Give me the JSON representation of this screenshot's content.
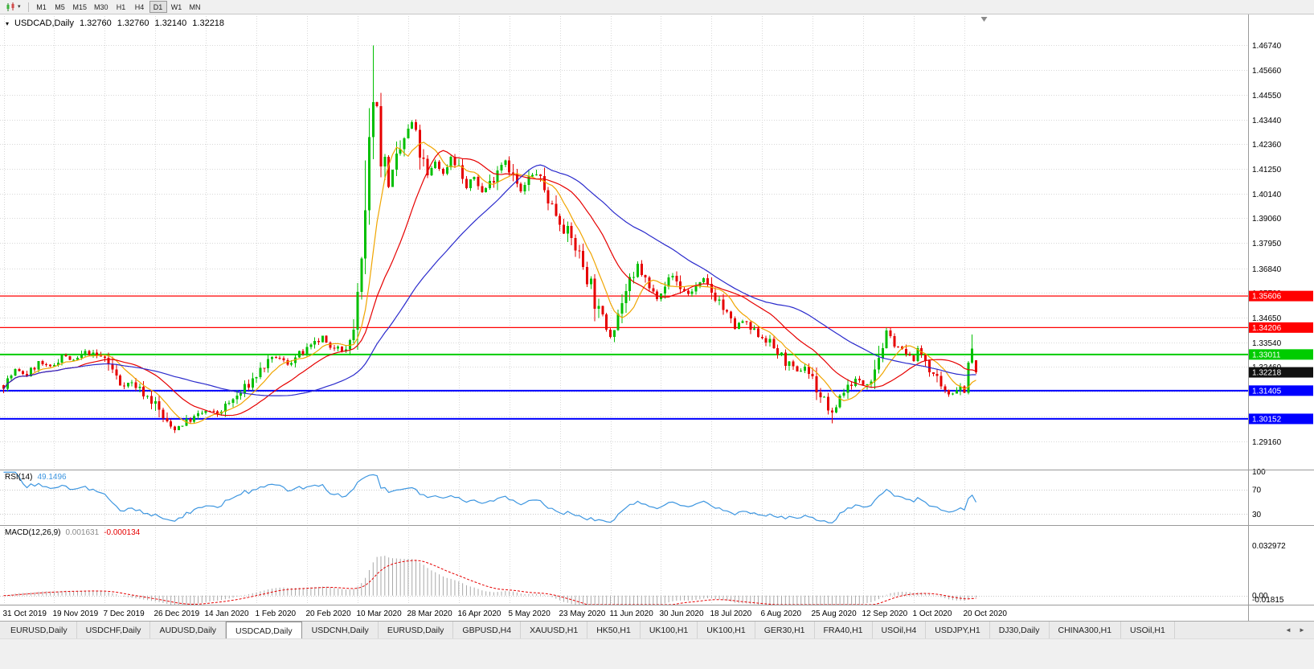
{
  "toolbar": {
    "dropdown_caret": "▾",
    "timeframes": [
      "M1",
      "M5",
      "M15",
      "M30",
      "H1",
      "H4",
      "D1",
      "W1",
      "MN"
    ],
    "active_timeframe": "D1"
  },
  "chart_data": {
    "type": "candlestick",
    "symbol": "USDCAD",
    "timeframe": "Daily",
    "title": {
      "marker": "▾",
      "symbol_label": "USDCAD,Daily",
      "open": "1.32760",
      "high": "1.32760",
      "low": "1.32140",
      "close": "1.32218"
    },
    "price_axis": {
      "labels": [
        "1.46740",
        "1.45660",
        "1.44550",
        "1.43440",
        "1.42360",
        "1.41250",
        "1.40140",
        "1.39060",
        "1.37950",
        "1.36840",
        "1.35760",
        "1.34650",
        "1.33540",
        "1.32460",
        "1.31350",
        "1.30240",
        "1.29160"
      ],
      "range": [
        1.279,
        1.4775
      ]
    },
    "time_axis": {
      "labels": [
        "31 Oct 2019",
        "19 Nov 2019",
        "7 Dec 2019",
        "26 Dec 2019",
        "14 Jan 2020",
        "1 Feb 2020",
        "20 Feb 2020",
        "10 Mar 2020",
        "28 Mar 2020",
        "16 Apr 2020",
        "5 May 2020",
        "23 May 2020",
        "11 Jun 2020",
        "30 Jun 2020",
        "18 Jul 2020",
        "6 Aug 2020",
        "25 Aug 2020",
        "12 Sep 2020",
        "1 Oct 2020",
        "20 Oct 2020"
      ],
      "candles_per_label": 13
    },
    "candle_count": 251,
    "noise_seed": 7,
    "price_waypoints": [
      [
        0,
        1.3165
      ],
      [
        3,
        1.323
      ],
      [
        6,
        1.321
      ],
      [
        9,
        1.3265
      ],
      [
        12,
        1.324
      ],
      [
        15,
        1.33
      ],
      [
        18,
        1.327
      ],
      [
        21,
        1.331
      ],
      [
        24,
        1.3295
      ],
      [
        26,
        1.3285
      ],
      [
        28,
        1.323
      ],
      [
        30,
        1.317
      ],
      [
        33,
        1.3175
      ],
      [
        36,
        1.313
      ],
      [
        39,
        1.308
      ],
      [
        42,
        1.299
      ],
      [
        44,
        1.297
      ],
      [
        46,
        1.2995
      ],
      [
        49,
        1.302
      ],
      [
        52,
        1.305
      ],
      [
        55,
        1.304
      ],
      [
        58,
        1.3085
      ],
      [
        61,
        1.313
      ],
      [
        64,
        1.319
      ],
      [
        67,
        1.325
      ],
      [
        70,
        1.329
      ],
      [
        73,
        1.326
      ],
      [
        76,
        1.33
      ],
      [
        79,
        1.333
      ],
      [
        82,
        1.3375
      ],
      [
        84,
        1.332
      ],
      [
        86,
        1.3345
      ],
      [
        88,
        1.331
      ],
      [
        90,
        1.342
      ],
      [
        92,
        1.362
      ],
      [
        93,
        1.385
      ],
      [
        94,
        1.415
      ],
      [
        95,
        1.449
      ],
      [
        96,
        1.44
      ],
      [
        97,
        1.422
      ],
      [
        99,
        1.406
      ],
      [
        101,
        1.415
      ],
      [
        103,
        1.426
      ],
      [
        105,
        1.433
      ],
      [
        107,
        1.42
      ],
      [
        109,
        1.409
      ],
      [
        111,
        1.416
      ],
      [
        113,
        1.41
      ],
      [
        115,
        1.418
      ],
      [
        117,
        1.413
      ],
      [
        119,
        1.404
      ],
      [
        121,
        1.409
      ],
      [
        123,
        1.402
      ],
      [
        125,
        1.406
      ],
      [
        127,
        1.413
      ],
      [
        129,
        1.417
      ],
      [
        131,
        1.409
      ],
      [
        133,
        1.402
      ],
      [
        135,
        1.408
      ],
      [
        137,
        1.411
      ],
      [
        139,
        1.403
      ],
      [
        141,
        1.396
      ],
      [
        143,
        1.39
      ],
      [
        145,
        1.384
      ],
      [
        147,
        1.378
      ],
      [
        149,
        1.37
      ],
      [
        151,
        1.361
      ],
      [
        153,
        1.348
      ],
      [
        155,
        1.342
      ],
      [
        156,
        1.339
      ],
      [
        158,
        1.349
      ],
      [
        160,
        1.358
      ],
      [
        162,
        1.363
      ],
      [
        163,
        1.37
      ],
      [
        164,
        1.366
      ],
      [
        166,
        1.359
      ],
      [
        168,
        1.356
      ],
      [
        170,
        1.362
      ],
      [
        172,
        1.365
      ],
      [
        174,
        1.36
      ],
      [
        176,
        1.357
      ],
      [
        178,
        1.36
      ],
      [
        180,
        1.363
      ],
      [
        182,
        1.358
      ],
      [
        184,
        1.354
      ],
      [
        186,
        1.347
      ],
      [
        188,
        1.342
      ],
      [
        190,
        1.345
      ],
      [
        192,
        1.341
      ],
      [
        194,
        1.339
      ],
      [
        196,
        1.337
      ],
      [
        198,
        1.333
      ],
      [
        200,
        1.329
      ],
      [
        202,
        1.325
      ],
      [
        204,
        1.322
      ],
      [
        206,
        1.325
      ],
      [
        208,
        1.319
      ],
      [
        210,
        1.312
      ],
      [
        212,
        1.306
      ],
      [
        213,
        1.303
      ],
      [
        215,
        1.312
      ],
      [
        217,
        1.316
      ],
      [
        219,
        1.319
      ],
      [
        221,
        1.317
      ],
      [
        223,
        1.321
      ],
      [
        225,
        1.33
      ],
      [
        227,
        1.339
      ],
      [
        229,
        1.336
      ],
      [
        231,
        1.331
      ],
      [
        233,
        1.329
      ],
      [
        234,
        1.328
      ],
      [
        235,
        1.332
      ],
      [
        237,
        1.328
      ],
      [
        239,
        1.321
      ],
      [
        241,
        1.314
      ],
      [
        243,
        1.3125
      ],
      [
        245,
        1.315
      ],
      [
        247,
        1.3165
      ],
      [
        248,
        1.3255
      ],
      [
        249,
        1.332
      ],
      [
        250,
        1.32218
      ]
    ],
    "candle_overrides": [
      {
        "i": 44,
        "l": 1.2952
      },
      {
        "i": 95,
        "h": 1.4674
      },
      {
        "i": 213,
        "l": 1.2995
      },
      {
        "i": 227,
        "h": 1.342
      },
      {
        "i": 249,
        "h": 1.339
      },
      {
        "i": 250,
        "o": 1.3276,
        "h": 1.3276,
        "l": 1.3214,
        "c": 1.32218
      }
    ],
    "levels": [
      {
        "price": 1.35606,
        "label": "1.35606",
        "color": "#ff0000",
        "thickness": 1.3
      },
      {
        "price": 1.34206,
        "label": "1.34206",
        "color": "#ff0000",
        "thickness": 1.3
      },
      {
        "price": 1.33011,
        "label": "1.33011",
        "color": "#00cc00",
        "thickness": 2
      },
      {
        "price": 1.31405,
        "label": "1.31405",
        "color": "#0000ff",
        "thickness": 2
      },
      {
        "price": 1.30152,
        "label": "1.30152",
        "color": "#0000ff",
        "thickness": 2
      }
    ],
    "current_price": {
      "price": 1.32218,
      "label": "1.32218",
      "color": "#111111"
    },
    "moving_averages": [
      {
        "period": 8,
        "color": "#f0a500"
      },
      {
        "period": 20,
        "color": "#e60000"
      },
      {
        "period": 45,
        "color": "#2a2acc"
      }
    ],
    "colors": {
      "up": "#00bf00",
      "down": "#e60000",
      "grid": "#d8d8d8",
      "pane_border": "#9a9a9a",
      "axis_text": "#000000",
      "background": "#ffffff"
    },
    "indicators": {
      "rsi": {
        "name": "RSI(14)",
        "value": "49.1496",
        "period": 14,
        "color": "#3d96e0",
        "axis_labels": [
          "100",
          "70",
          "30"
        ],
        "level_lines": [
          70,
          30
        ],
        "range": [
          12,
          102
        ]
      },
      "macd": {
        "name": "MACD(12,26,9)",
        "value_main": "0.001631",
        "value_signal": "-0.000134",
        "fast": 12,
        "slow": 26,
        "signal": 9,
        "histogram_color": "#a8a8a8",
        "signal_color": "#e60000",
        "axis_labels": [
          "0.032972",
          "0.00",
          "-0.01815"
        ],
        "range": [
          -0.006,
          0.046
        ]
      }
    }
  },
  "tabs": {
    "items": [
      "EURUSD,Daily",
      "USDCHF,Daily",
      "AUDUSD,Daily",
      "USDCAD,Daily",
      "USDCNH,Daily",
      "EURUSD,Daily",
      "GBPUSD,H4",
      "XAUUSD,H1",
      "HK50,H1",
      "UK100,H1",
      "UK100,H1",
      "GER30,H1",
      "FRA40,H1",
      "USOil,H4",
      "USDJPY,H1",
      "DJ30,Daily",
      "CHINA300,H1",
      "USOil,H1"
    ],
    "active_index": 3,
    "scroll_left_icon": "◄",
    "scroll_right_icon": "►"
  }
}
